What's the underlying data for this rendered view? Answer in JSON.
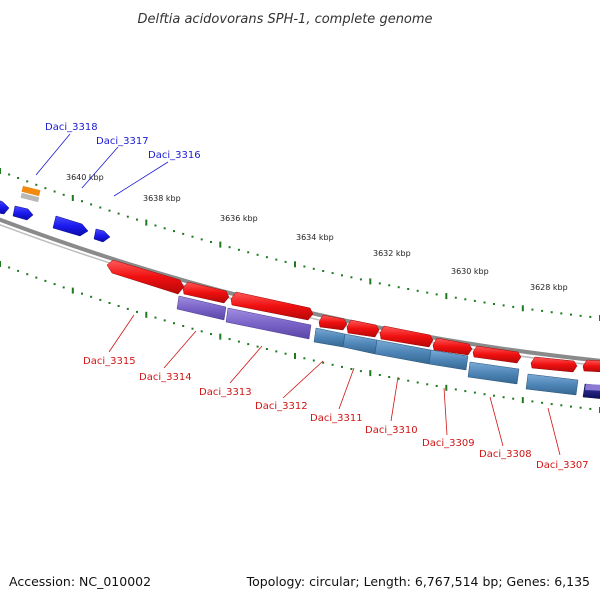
{
  "title": "Delftia acidovorans SPH-1, complete genome",
  "footer": {
    "accession": "Accession: NC_010002",
    "summary": "Topology: circular; Length: 6,767,514 bp; Genes: 6,135"
  },
  "colors": {
    "forward_label": "#1a1ad6",
    "reverse_label": "#d01515",
    "red_gene": "#f01010",
    "blue_gene": "#1a1aee",
    "purple_gene": "#7a64c8",
    "steel_gene": "#4f86b8",
    "navy_gene": "#15157a",
    "orange_gene": "#f08a10",
    "tick": "#1e7a1e",
    "backbone": "#888888"
  },
  "kbp_ticks": [
    "3640 kbp",
    "3638 kbp",
    "3636 kbp",
    "3634 kbp",
    "3632 kbp",
    "3630 kbp",
    "3628 kbp"
  ],
  "forward_labels": [
    "Daci_3318",
    "Daci_3317",
    "Daci_3316"
  ],
  "reverse_labels": [
    "Daci_3315",
    "Daci_3314",
    "Daci_3313",
    "Daci_3312",
    "Daci_3311",
    "Daci_3310",
    "Daci_3309",
    "Daci_3308",
    "Daci_3307"
  ]
}
